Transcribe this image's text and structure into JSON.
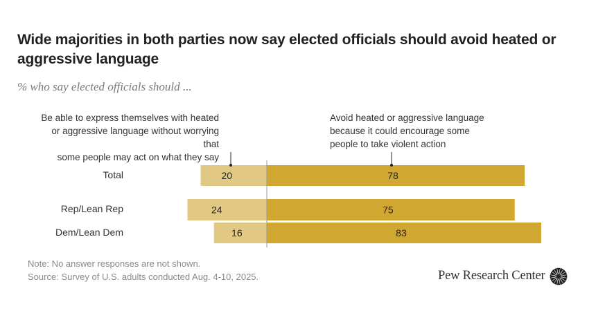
{
  "header": {
    "title": "Wide majorities in both parties now say elected officials should avoid heated or aggressive language",
    "subtitle": "% who say elected officials should ..."
  },
  "colors": {
    "left_bar": "#E2C983",
    "right_bar": "#D0A731",
    "divider": "#9a9a9a",
    "text": "#333333"
  },
  "chart_data": {
    "type": "bar",
    "orientation": "horizontal-diverging",
    "title": "Wide majorities in both parties now say elected officials should avoid heated or aggressive language",
    "subtitle": "% who say elected officials should ...",
    "categories": [
      "Total",
      "Rep/Lean Rep",
      "Dem/Lean Dem"
    ],
    "series": [
      {
        "name": "Be able to express themselves with heated or aggressive language without worrying that some people may act on what they say",
        "values": [
          20,
          24,
          16
        ]
      },
      {
        "name": "Avoid heated or aggressive language because it could encourage some people to take violent action",
        "values": [
          78,
          75,
          83
        ]
      }
    ],
    "legend_placement": "top (column headers above bars)",
    "grid": false
  },
  "column_heads": {
    "left": [
      "Be able to express themselves with heated",
      "or aggressive language without worrying that",
      "some people may act on what they say"
    ],
    "right": [
      "Avoid heated or aggressive language",
      "because it could encourage some",
      "people to take violent action"
    ]
  },
  "footer": {
    "note": "Note: No answer responses are not shown.",
    "source": "Source: Survey of U.S. adults conducted Aug. 4-10, 2025.",
    "logo_text": "Pew Research Center"
  }
}
